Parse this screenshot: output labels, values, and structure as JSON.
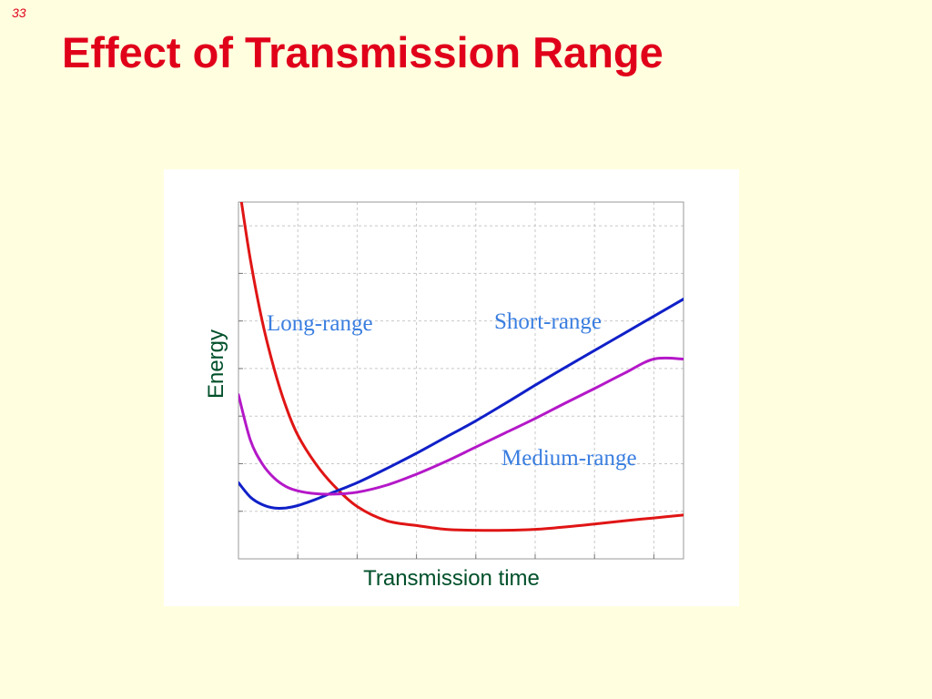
{
  "slide": {
    "number": "33",
    "title": "Effect of Transmission Range"
  },
  "colors": {
    "background": "#FFFFE0",
    "title": "#E0001A",
    "axis_label": "#00502A",
    "series_label": "#3A7EE0"
  },
  "chart_data": {
    "type": "line",
    "title": "",
    "xlabel": "Transmission time",
    "ylabel": "Energy",
    "xlim": [
      0,
      7.5
    ],
    "ylim": [
      0,
      7.5
    ],
    "grid": true,
    "series": [
      {
        "name": "Long-range",
        "color": "#E01515",
        "x": [
          0.05,
          0.2,
          0.4,
          0.6,
          0.8,
          1.0,
          1.3,
          1.6,
          2.0,
          2.5,
          3.0,
          3.5,
          4.0,
          4.5,
          5.0,
          5.5,
          6.0,
          6.5,
          7.0,
          7.5
        ],
        "y": [
          7.5,
          6.3,
          5.0,
          4.0,
          3.2,
          2.6,
          2.0,
          1.55,
          1.1,
          0.8,
          0.7,
          0.62,
          0.6,
          0.6,
          0.62,
          0.67,
          0.73,
          0.8,
          0.86,
          0.92
        ]
      },
      {
        "name": "Short-range",
        "color": "#1020C8",
        "x": [
          0.0,
          0.2,
          0.4,
          0.6,
          0.8,
          1.0,
          1.3,
          1.6,
          2.0,
          2.5,
          3.0,
          3.5,
          4.0,
          4.5,
          5.0,
          5.5,
          6.0,
          6.5,
          7.0,
          7.5
        ],
        "y": [
          1.6,
          1.3,
          1.14,
          1.07,
          1.07,
          1.12,
          1.25,
          1.4,
          1.6,
          1.9,
          2.22,
          2.56,
          2.9,
          3.27,
          3.65,
          4.02,
          4.38,
          4.74,
          5.1,
          5.46
        ]
      },
      {
        "name": "Medium-range",
        "color": "#B418C8",
        "x": [
          0.0,
          0.2,
          0.4,
          0.6,
          0.8,
          1.0,
          1.3,
          1.6,
          2.0,
          2.5,
          3.0,
          3.5,
          4.0,
          4.5,
          5.0,
          5.5,
          6.0,
          6.5,
          7.0,
          7.5
        ],
        "y": [
          3.45,
          2.5,
          2.0,
          1.7,
          1.52,
          1.43,
          1.37,
          1.36,
          1.4,
          1.55,
          1.78,
          2.05,
          2.35,
          2.65,
          2.95,
          3.27,
          3.58,
          3.9,
          4.2,
          4.2
        ]
      }
    ],
    "annotations": [
      {
        "series": "Long-range",
        "text": "Long-range",
        "color": "#3A7EE0"
      },
      {
        "series": "Short-range",
        "text": "Short-range",
        "color": "#3A7EE0"
      },
      {
        "series": "Medium-range",
        "text": "Medium-range",
        "color": "#3A7EE0"
      }
    ]
  }
}
